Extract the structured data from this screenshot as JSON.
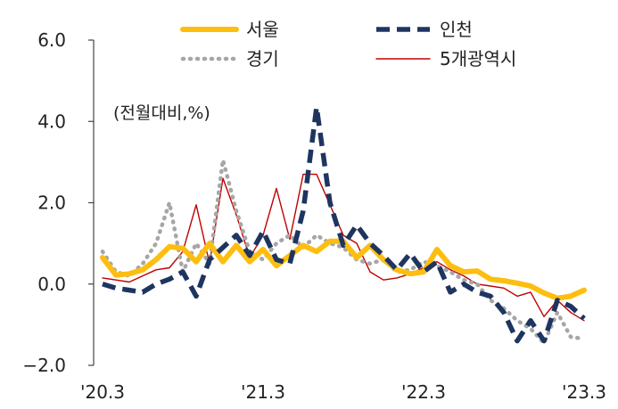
{
  "chart_data": {
    "type": "line",
    "unit_label": "(전월대비,%)",
    "ylim": [
      -2.0,
      6.0
    ],
    "yticks": [
      "6.0",
      "4.0",
      "2.0",
      "0.0",
      "−2.0"
    ],
    "ytick_values": [
      6.0,
      4.0,
      2.0,
      0.0,
      -2.0
    ],
    "xlim": [
      0,
      36
    ],
    "xticks": [
      "'20.3",
      "'21.3",
      "'22.3",
      "'23.3"
    ],
    "xtick_values": [
      0,
      12,
      24,
      36
    ],
    "x": [
      0,
      1,
      2,
      3,
      4,
      5,
      6,
      7,
      8,
      9,
      10,
      11,
      12,
      13,
      14,
      15,
      16,
      17,
      18,
      19,
      20,
      21,
      22,
      23,
      24,
      25,
      26,
      27,
      28,
      29,
      30,
      31,
      32,
      33,
      34,
      35,
      36
    ],
    "legend_position": "top",
    "series": [
      {
        "name": "서울",
        "color": "#FDBE10",
        "style": "solid-thick",
        "values": [
          0.65,
          0.22,
          0.25,
          0.35,
          0.6,
          0.92,
          0.88,
          0.55,
          1.0,
          0.55,
          0.95,
          0.55,
          0.85,
          0.45,
          0.7,
          0.95,
          0.8,
          1.05,
          1.05,
          0.65,
          0.95,
          0.6,
          0.35,
          0.25,
          0.3,
          0.85,
          0.45,
          0.3,
          0.32,
          0.12,
          0.08,
          0.02,
          -0.05,
          -0.22,
          -0.35,
          -0.3,
          -0.15
        ]
      },
      {
        "name": "인천",
        "color": "#1E3560",
        "style": "dashed",
        "values": [
          0.0,
          -0.1,
          -0.15,
          -0.2,
          0.0,
          0.12,
          0.3,
          -0.3,
          0.6,
          0.9,
          1.2,
          0.7,
          1.3,
          0.6,
          0.5,
          1.8,
          4.35,
          2.0,
          0.95,
          1.45,
          1.0,
          0.7,
          0.35,
          0.75,
          0.3,
          0.55,
          -0.2,
          0.0,
          -0.2,
          -0.3,
          -0.7,
          -1.4,
          -0.9,
          -1.4,
          -0.4,
          -0.55,
          -0.85
        ]
      },
      {
        "name": "경기",
        "color": "#A6A6A6",
        "style": "dotted",
        "values": [
          0.8,
          0.3,
          0.2,
          0.5,
          1.0,
          2.0,
          0.3,
          1.0,
          0.5,
          3.05,
          1.8,
          0.8,
          0.6,
          1.0,
          1.2,
          0.9,
          1.2,
          1.0,
          0.9,
          0.6,
          0.5,
          0.6,
          0.3,
          0.35,
          0.55,
          0.45,
          0.3,
          0.1,
          0.0,
          -0.4,
          -0.6,
          -0.9,
          -1.1,
          -1.45,
          -0.7,
          -1.3,
          -1.35
        ]
      },
      {
        "name": "5개광역시",
        "color": "#C00000",
        "style": "thin",
        "values": [
          0.15,
          0.1,
          0.05,
          0.2,
          0.35,
          0.4,
          0.8,
          1.95,
          0.5,
          2.6,
          1.7,
          0.65,
          1.2,
          2.35,
          1.1,
          2.7,
          2.7,
          1.95,
          1.2,
          1.0,
          0.3,
          0.1,
          0.15,
          0.25,
          0.4,
          0.55,
          0.35,
          0.2,
          0.0,
          -0.05,
          -0.1,
          -0.3,
          -0.2,
          -0.8,
          -0.4,
          -0.7,
          -0.9
        ]
      }
    ]
  }
}
